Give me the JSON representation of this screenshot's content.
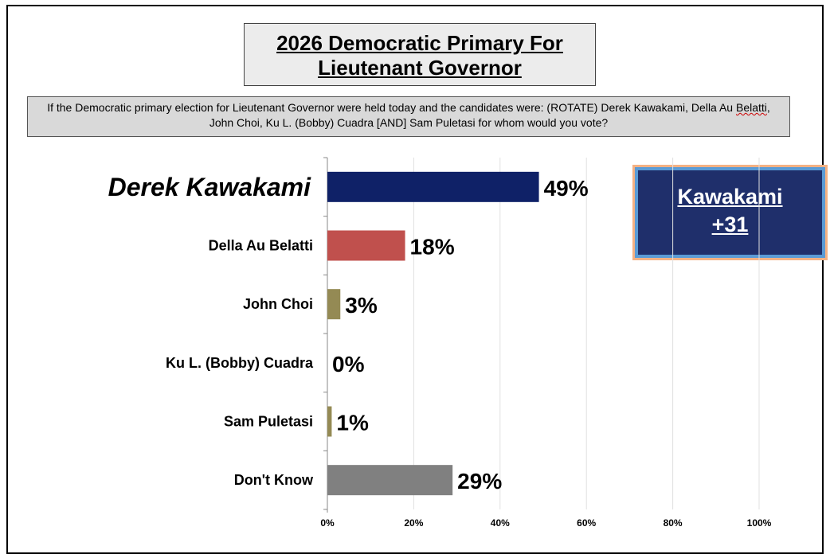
{
  "title": {
    "line1": "2026 Democratic Primary For",
    "line2": "Lieutenant Governor"
  },
  "question": {
    "text_before": "If the Democratic primary election for Lieutenant Governor were held today and the candidates were: (ROTATE) Derek Kawakami, Della Au ",
    "text_squiggle": "Belatti",
    "text_after": ", John Choi, Ku L. (Bobby) Cuadra [AND] Sam Puletasi for whom would you vote?"
  },
  "margin_callout": {
    "line1": "Kawakami",
    "line2": "+31"
  },
  "chart_data": {
    "type": "bar",
    "orientation": "horizontal",
    "categories": [
      "Derek Kawakami",
      "Della Au Belatti",
      "John Choi",
      "Ku L. (Bobby) Cuadra",
      "Sam Puletasi",
      "Don't Know"
    ],
    "values": [
      49,
      18,
      3,
      0,
      1,
      29
    ],
    "value_labels": [
      "49%",
      "18%",
      "3%",
      "0%",
      "1%",
      "29%"
    ],
    "colors": [
      "#0f2167",
      "#c0504d",
      "#948a54",
      "#948a54",
      "#948a54",
      "#808080"
    ],
    "xlim": [
      0,
      100
    ],
    "xticks": [
      0,
      20,
      40,
      60,
      80,
      100
    ],
    "xtick_labels": [
      "0%",
      "20%",
      "40%",
      "60%",
      "80%",
      "100%"
    ],
    "grid": true,
    "highlight_category": "Derek Kawakami"
  }
}
